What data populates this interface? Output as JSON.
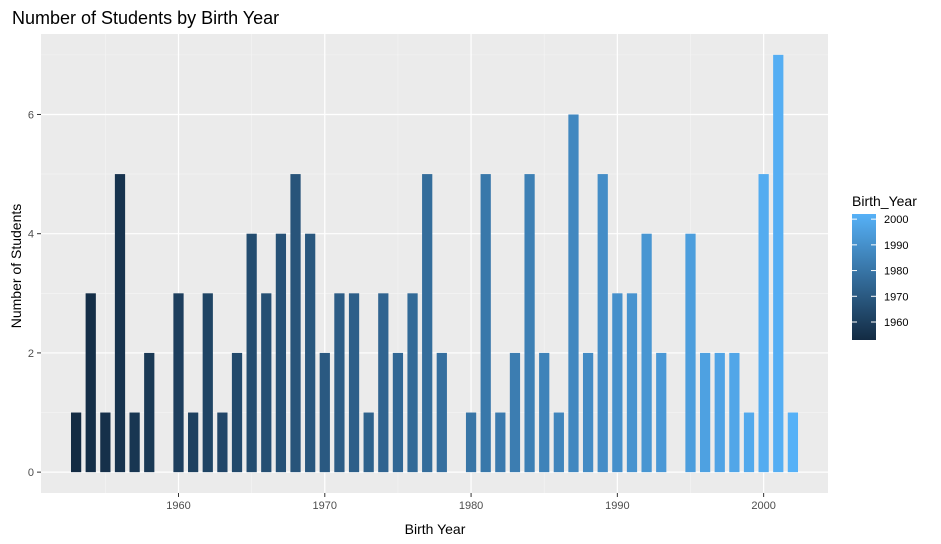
{
  "chart_data": {
    "type": "bar",
    "title": "Number of Students by Birth Year",
    "xlabel": "Birth Year",
    "ylabel": "Number of Students",
    "xlim": [
      1950.6,
      2004.4
    ],
    "ylim": [
      -0.35,
      7.35
    ],
    "x_ticks": [
      1960,
      1970,
      1980,
      1990,
      2000
    ],
    "x_tick_labels": [
      "1960",
      "1970",
      "1980",
      "1990",
      "2000"
    ],
    "y_ticks": [
      0,
      2,
      4,
      6
    ],
    "y_tick_labels": [
      "0",
      "2",
      "4",
      "6"
    ],
    "grid": true,
    "bar_width": 0.7,
    "x": [
      1953,
      1954,
      1955,
      1956,
      1957,
      1958,
      1960,
      1961,
      1962,
      1963,
      1964,
      1965,
      1966,
      1967,
      1968,
      1969,
      1970,
      1971,
      1972,
      1973,
      1974,
      1975,
      1976,
      1977,
      1978,
      1980,
      1981,
      1982,
      1983,
      1984,
      1985,
      1986,
      1987,
      1988,
      1989,
      1990,
      1991,
      1992,
      1993,
      1995,
      1996,
      1997,
      1998,
      1999,
      2000,
      2001,
      2002
    ],
    "values": [
      1,
      3,
      1,
      5,
      1,
      2,
      3,
      1,
      3,
      1,
      2,
      4,
      3,
      4,
      5,
      4,
      2,
      3,
      3,
      1,
      3,
      2,
      3,
      5,
      2,
      1,
      5,
      1,
      2,
      5,
      2,
      1,
      6,
      2,
      5,
      3,
      3,
      4,
      2,
      4,
      2,
      2,
      2,
      1,
      5,
      7,
      1
    ],
    "legend": {
      "title": "Birth_Year",
      "placement": "right",
      "ticks": [
        1960,
        1970,
        1980,
        1990,
        2000
      ],
      "tick_labels": [
        "1960",
        "1970",
        "1980",
        "1990",
        "2000"
      ]
    },
    "color_scale": {
      "low_value": 1953,
      "high_value": 2002,
      "low_color": "#132b43",
      "high_color": "#56b1f7"
    },
    "colors": {
      "panel_background": "#ebebeb",
      "grid_major": "#ffffff",
      "grid_minor": "#f5f5f5",
      "tick_text": "#4d4d4d",
      "tick_mark": "#333333"
    }
  }
}
